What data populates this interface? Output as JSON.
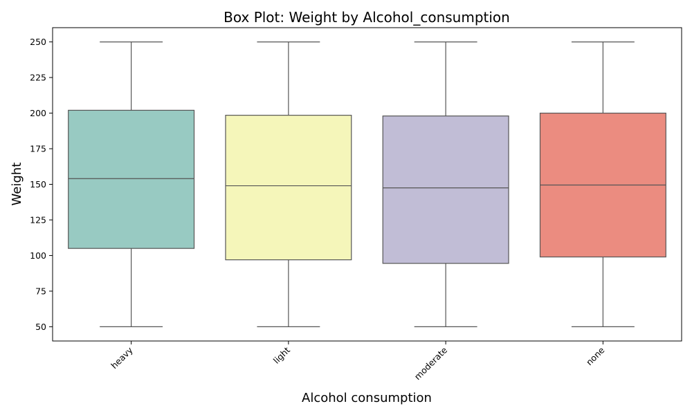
{
  "chart_data": {
    "type": "box",
    "title": "Box Plot: Weight by Alcohol_consumption",
    "xlabel": "Alcohol consumption",
    "ylabel": "Weight",
    "ylim": [
      40,
      260
    ],
    "yticks": [
      50,
      75,
      100,
      125,
      150,
      175,
      200,
      225,
      250
    ],
    "grid": false,
    "categories": [
      "heavy",
      "light",
      "moderate",
      "none"
    ],
    "series": [
      {
        "category": "heavy",
        "color": "#98cac2",
        "min": 50,
        "q1": 105,
        "median": 154,
        "q3": 202,
        "max": 250
      },
      {
        "category": "light",
        "color": "#f5f6ba",
        "min": 50,
        "q1": 97,
        "median": 149,
        "q3": 198.5,
        "max": 250
      },
      {
        "category": "moderate",
        "color": "#c1bdd6",
        "min": 50,
        "q1": 94.5,
        "median": 147.5,
        "q3": 198,
        "max": 250
      },
      {
        "category": "none",
        "color": "#eb8c80",
        "min": 50,
        "q1": 99,
        "median": 149.5,
        "q3": 200,
        "max": 250
      }
    ]
  }
}
